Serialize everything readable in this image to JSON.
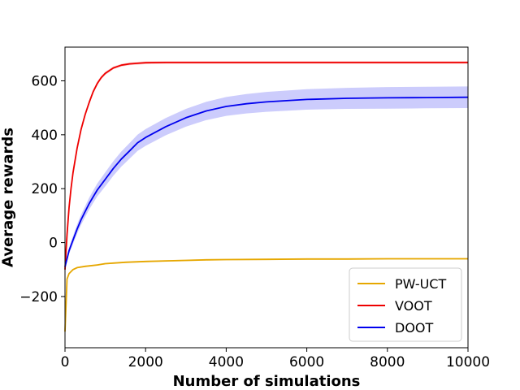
{
  "chart_data": {
    "type": "line",
    "title": "",
    "xlabel": "Number of simulations",
    "ylabel": "Average rewards",
    "xlim": [
      0,
      10000
    ],
    "ylim": [
      -390,
      725
    ],
    "xticks": [
      0,
      2000,
      4000,
      6000,
      8000,
      10000
    ],
    "xtick_labels": [
      "0",
      "2000",
      "4000",
      "6000",
      "8000",
      "10000"
    ],
    "yticks": [
      -200,
      0,
      200,
      400,
      600
    ],
    "ytick_labels": [
      "−200",
      "0",
      "200",
      "400",
      "600"
    ],
    "grid": false,
    "legend_position": "lower-right",
    "series": [
      {
        "name": "PW-UCT",
        "color": "#e6a700",
        "x": [
          0,
          50,
          100,
          200,
          300,
          500,
          800,
          1000,
          1500,
          2000,
          2500,
          3000,
          3500,
          4000,
          5000,
          6000,
          7000,
          8000,
          9000,
          10000
        ],
        "values": [
          -330,
          -135,
          -115,
          -100,
          -93,
          -88,
          -83,
          -78,
          -73,
          -70,
          -68,
          -66,
          -64,
          -63,
          -62,
          -61,
          -61,
          -60,
          -60,
          -60
        ],
        "band": [
          3,
          3,
          3,
          3,
          3,
          3,
          3,
          3,
          3,
          3,
          3,
          3,
          3,
          3,
          3,
          3,
          3,
          3,
          3,
          3
        ]
      },
      {
        "name": "VOOT",
        "color": "#ee0000",
        "x": [
          0,
          50,
          100,
          150,
          200,
          300,
          400,
          500,
          600,
          700,
          800,
          900,
          1000,
          1200,
          1400,
          1600,
          1800,
          2000,
          2500,
          3000,
          4000,
          5000,
          6000,
          7000,
          8000,
          9000,
          10000
        ],
        "values": [
          -100,
          30,
          130,
          200,
          260,
          350,
          420,
          475,
          520,
          560,
          590,
          612,
          628,
          648,
          658,
          663,
          665,
          667,
          668,
          668,
          668,
          668,
          668,
          668,
          668,
          668,
          668
        ],
        "band": [
          15,
          15,
          12,
          12,
          10,
          10,
          8,
          8,
          8,
          7,
          7,
          6,
          6,
          5,
          5,
          5,
          5,
          5,
          5,
          5,
          5,
          5,
          5,
          5,
          5,
          5,
          5
        ]
      },
      {
        "name": "DOOT",
        "color": "#0000ee",
        "x": [
          0,
          100,
          200,
          300,
          400,
          500,
          600,
          700,
          800,
          1000,
          1200,
          1400,
          1600,
          1800,
          2000,
          2500,
          3000,
          3500,
          4000,
          4500,
          5000,
          6000,
          7000,
          8000,
          9000,
          10000
        ],
        "values": [
          -90,
          -30,
          10,
          50,
          85,
          115,
          145,
          170,
          195,
          235,
          275,
          310,
          340,
          370,
          390,
          430,
          463,
          488,
          505,
          515,
          522,
          531,
          535,
          537,
          538,
          539
        ],
        "band": [
          10,
          12,
          15,
          17,
          19,
          20,
          22,
          23,
          24,
          26,
          27,
          28,
          29,
          30,
          31,
          32,
          33,
          34,
          35,
          36,
          37,
          38,
          39,
          40,
          40,
          40
        ]
      }
    ]
  }
}
